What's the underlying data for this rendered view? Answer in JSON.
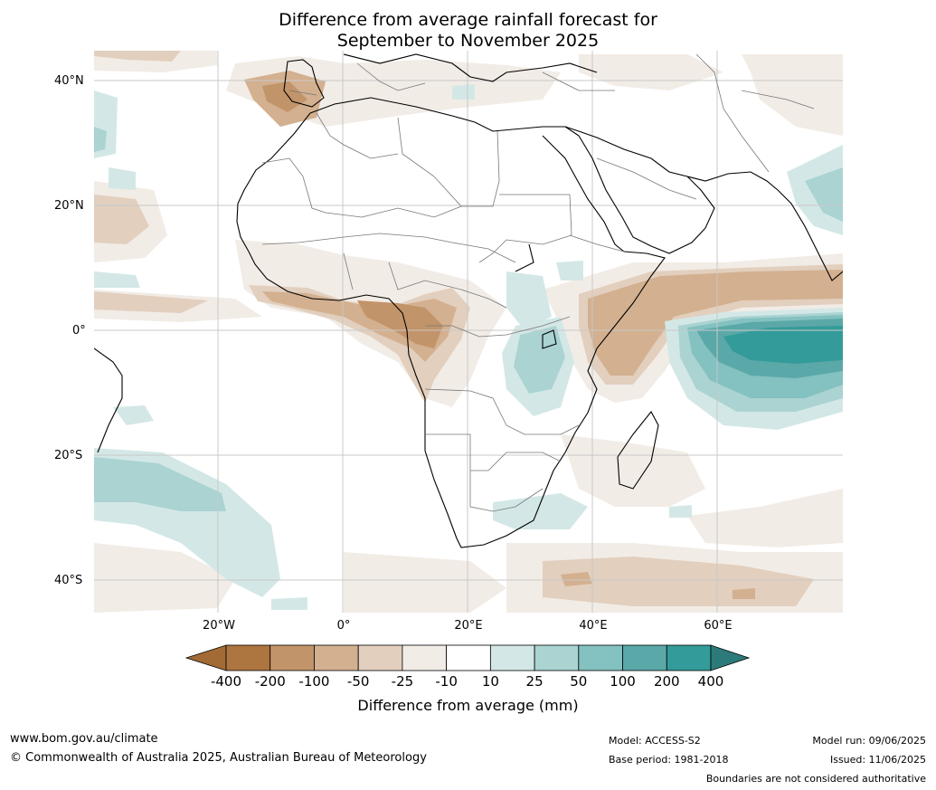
{
  "title": {
    "line1": "Difference from average rainfall forecast for",
    "line2": "September to November 2025"
  },
  "axes": {
    "lat_labels": [
      "40°N",
      "20°N",
      "0°",
      "20°S",
      "40°S"
    ],
    "lon_labels": [
      "20°W",
      "0°",
      "20°E",
      "40°E",
      "60°E"
    ]
  },
  "colorbar": {
    "title": "Difference from average (mm)",
    "ticks": [
      "-400",
      "-200",
      "-100",
      "-50",
      "-25",
      "-10",
      "10",
      "25",
      "50",
      "100",
      "200",
      "400"
    ],
    "colors": [
      "#a26b35",
      "#ad7540",
      "#c29469",
      "#d3b08f",
      "#e2cfbe",
      "#f2ece6",
      "#ffffff",
      "#d3e8e6",
      "#aad3d2",
      "#84c1c1",
      "#5ba8a8",
      "#339b99",
      "#2c7b7a"
    ]
  },
  "footer": {
    "website": "www.bom.gov.au/climate",
    "copyright": "© Commonwealth of Australia 2025, Australian Bureau of Meteorology",
    "model": "Model: ACCESS-S2",
    "base_period": "Base period: 1981-2018",
    "model_run": "Model run: 09/06/2025",
    "issued": "Issued: 11/06/2025",
    "disclaimer": "Boundaries are not considered authoritative"
  }
}
